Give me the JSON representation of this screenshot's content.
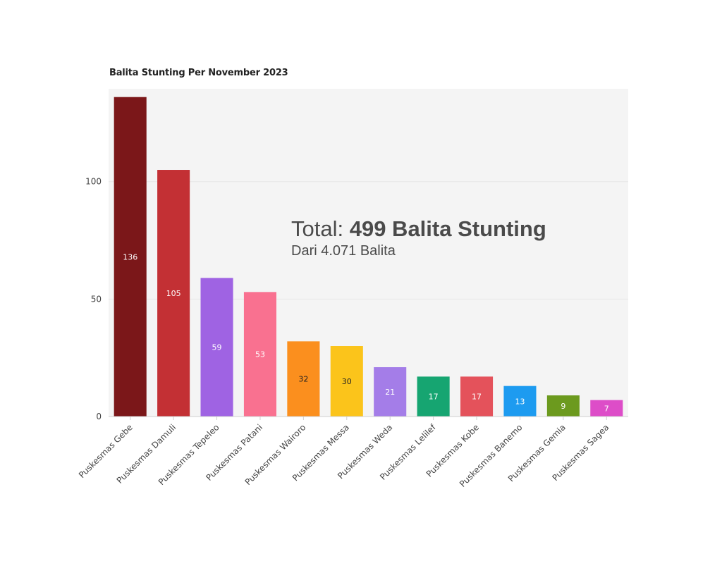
{
  "chart_data": {
    "type": "bar",
    "title": "Balita Stunting Per November 2023",
    "xlabel": "",
    "ylabel": "",
    "ylim": [
      0,
      140
    ],
    "yticks": [
      0,
      50,
      100
    ],
    "grid": true,
    "categories": [
      "Puskesmas Gebe",
      "Puskesmas Damuli",
      "Puskesmas Tepeleo",
      "Puskesmas Patani",
      "Puskesmas Wairoro",
      "Puskesmas Messa",
      "Puskesmas Weda",
      "Puskesmas Lelilef",
      "Puskesmas Kobe",
      "Puskesmas Banemo",
      "Puskesmas Gemia",
      "Puskesmas Sagea"
    ],
    "values": [
      136,
      105,
      59,
      53,
      32,
      30,
      21,
      17,
      17,
      13,
      9,
      7
    ],
    "colors": [
      "#7b1719",
      "#c33034",
      "#9f63e3",
      "#f97190",
      "#fb8f1e",
      "#fbc41b",
      "#a47de8",
      "#16a571",
      "#e4525b",
      "#1d9bf0",
      "#6c9a1e",
      "#dd4dc8"
    ],
    "label_colors": [
      "#ffffff",
      "#ffffff",
      "#ffffff",
      "#ffffff",
      "#222222",
      "#222222",
      "#ffffff",
      "#ffffff",
      "#ffffff",
      "#ffffff",
      "#ffffff",
      "#ffffff"
    ],
    "annotation": {
      "prefix": "Total: ",
      "bold": "499 Balita Stunting",
      "subtitle": "Dari 4.071 Balita"
    }
  }
}
